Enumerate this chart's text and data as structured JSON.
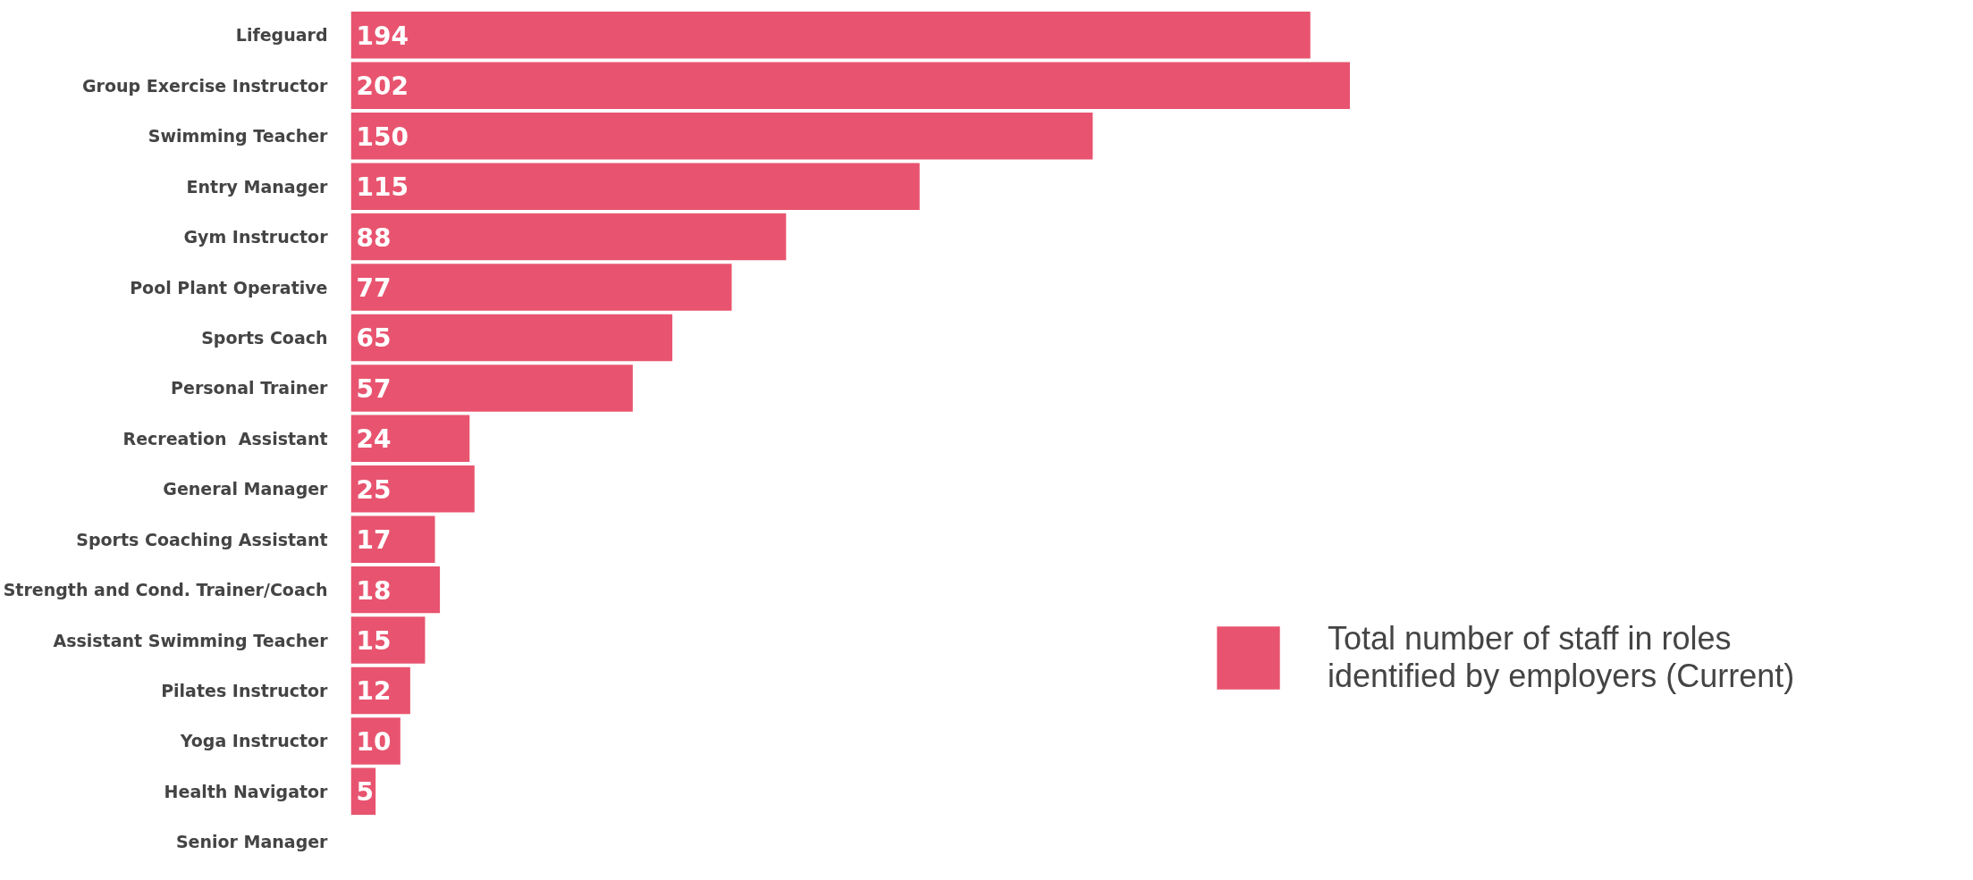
{
  "chart_data": {
    "type": "bar",
    "orientation": "horizontal",
    "data_labels": true,
    "legend": "right",
    "grid": false,
    "categories": [
      "Lifeguard",
      "Group Exercise Instructor",
      "Swimming Teacher",
      "Entry Manager",
      "Gym Instructor",
      "Pool Plant Operative",
      "Sports Coach",
      "Personal Trainer",
      "Recreation  Assistant",
      "General Manager",
      "Sports Coaching Assistant",
      "Strength and Cond. Trainer/Coach",
      "Assistant Swimming Teacher",
      "Pilates Instructor",
      "Yoga Instructor",
      "Health Navigator",
      "Senior Manager"
    ],
    "series": [
      {
        "name": "Total number of staff in roles identified by employers (Current)",
        "color": "#e8546f",
        "values": [
          194,
          202,
          150,
          115,
          88,
          77,
          65,
          57,
          24,
          25,
          17,
          18,
          15,
          12,
          10,
          5,
          null
        ]
      }
    ]
  }
}
